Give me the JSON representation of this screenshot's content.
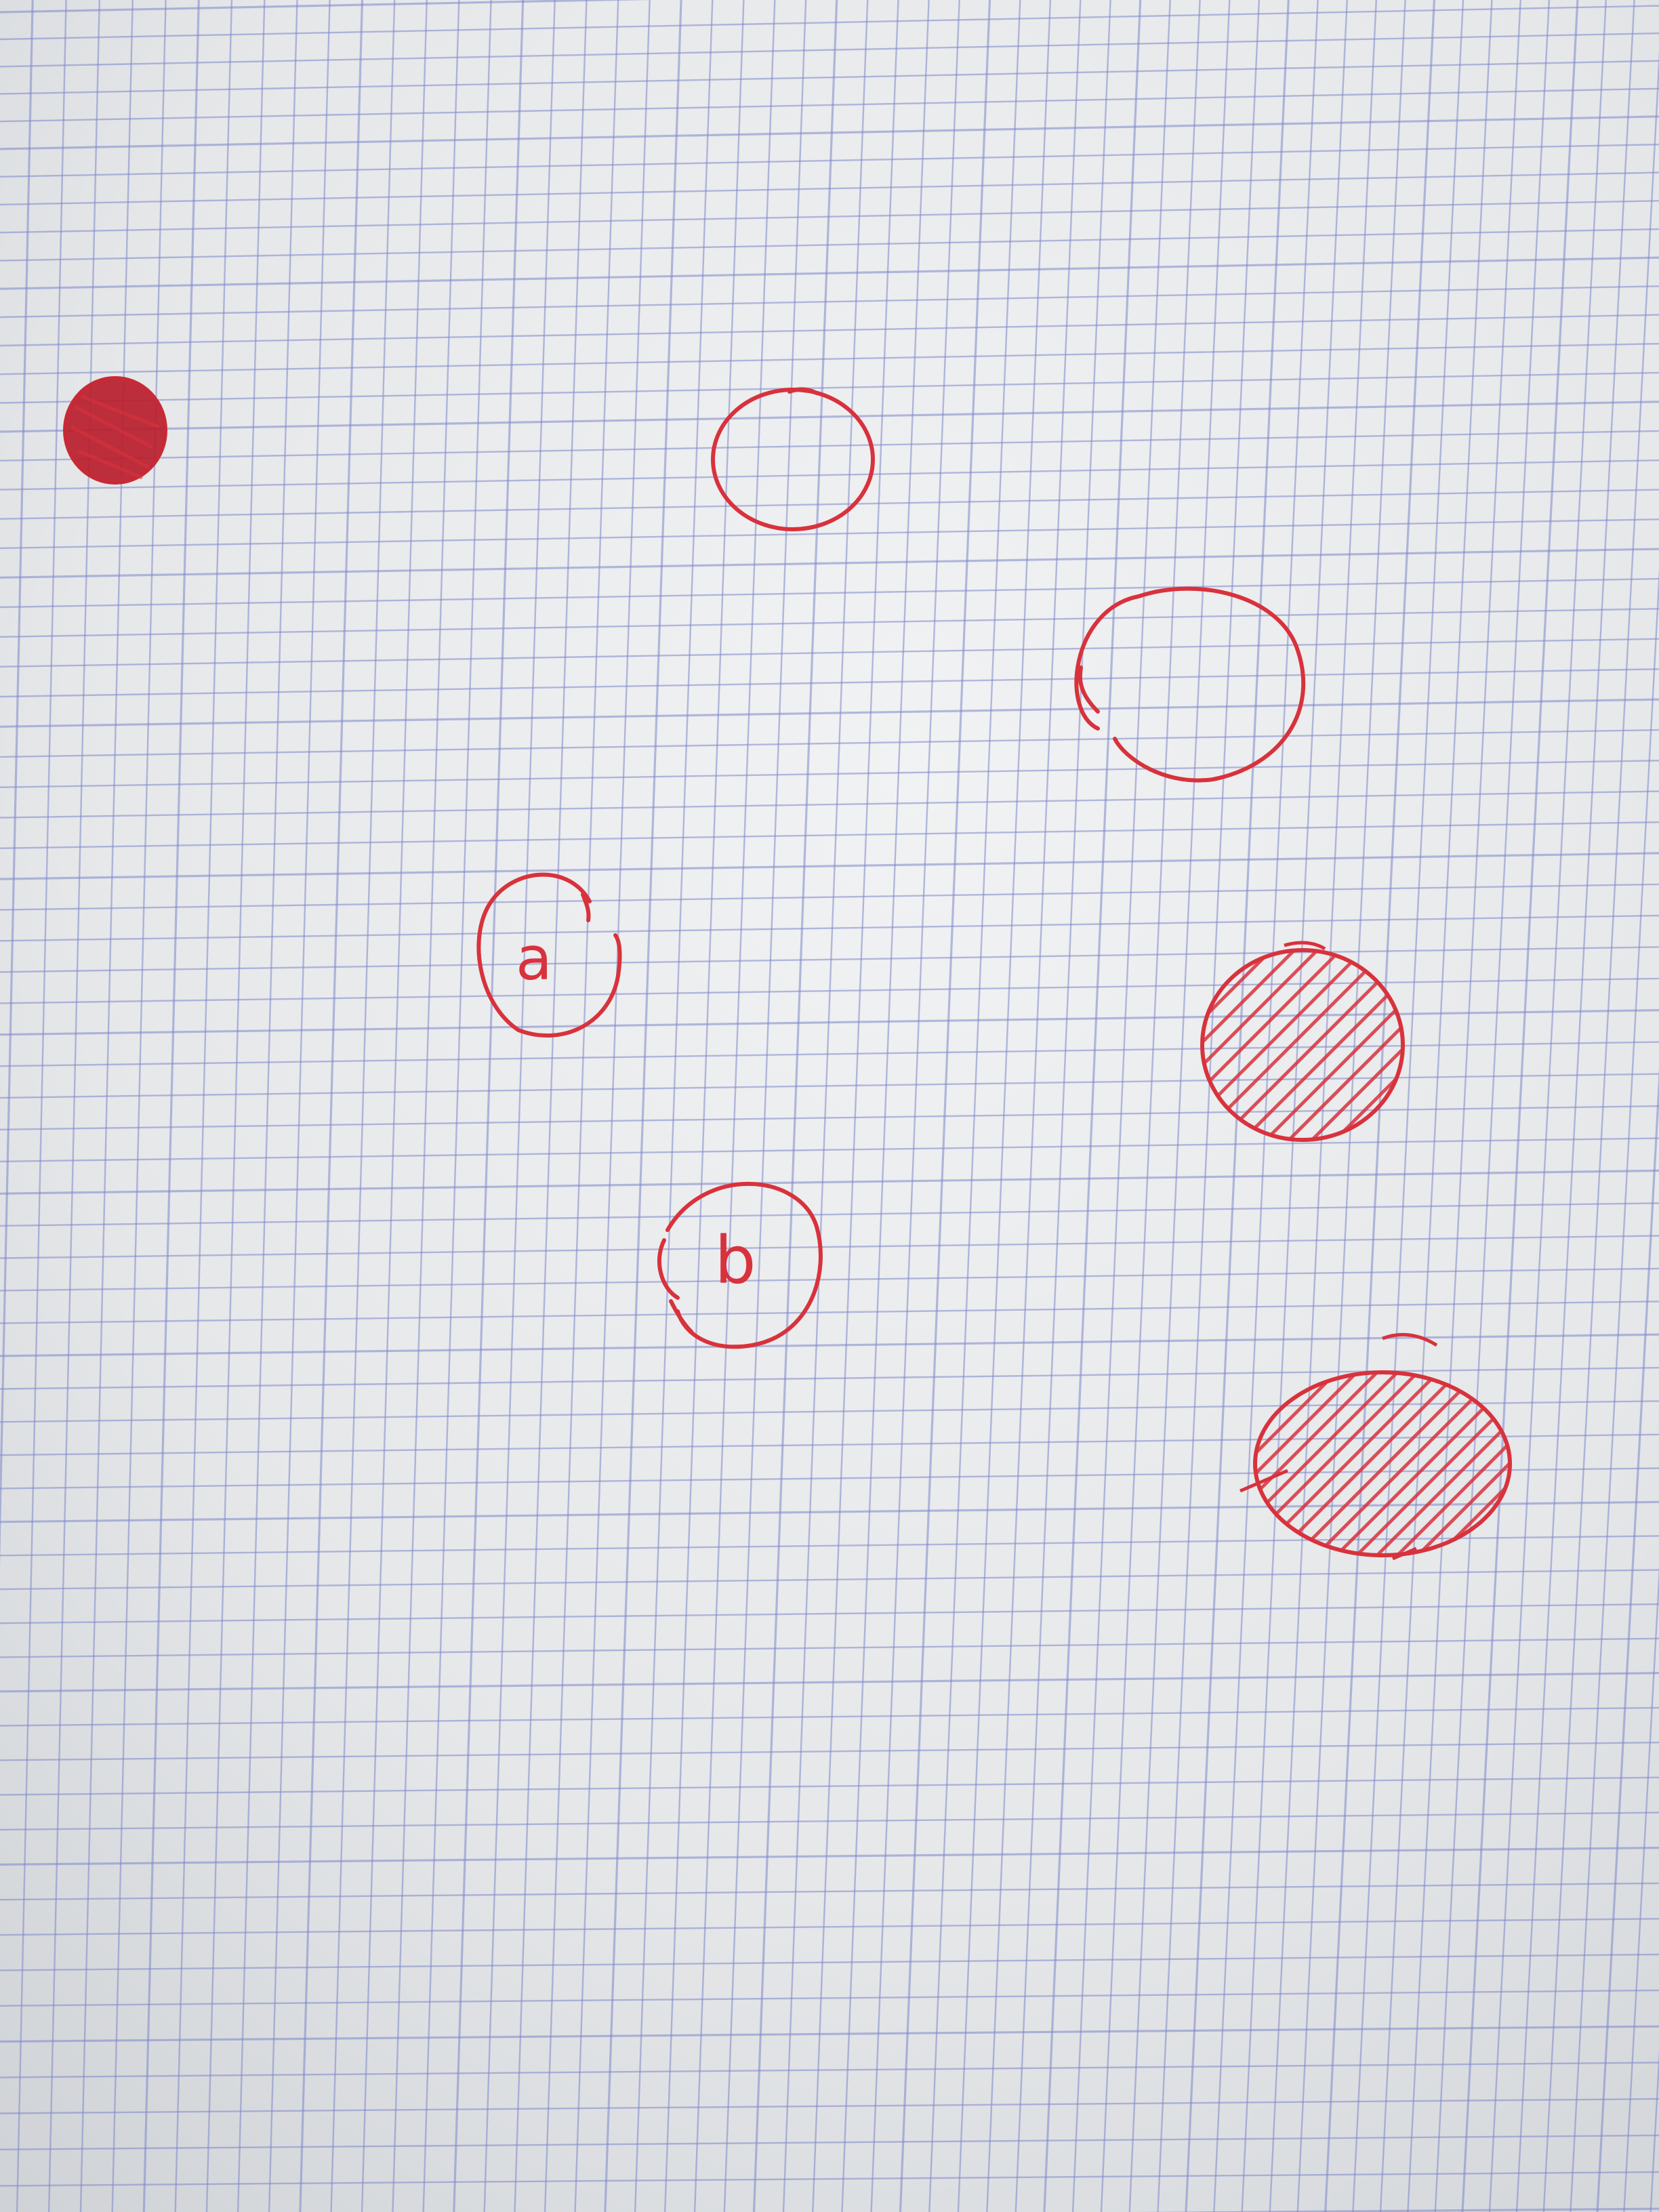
{
  "paper": {
    "background": "#e6e8ea",
    "grid_color": "#7e86c9",
    "ink_color": "#d8323c",
    "dark_ink_color": "#b81e2c"
  },
  "drawings": {
    "labels": {
      "a": "a",
      "b": "b"
    },
    "marks": [
      {
        "name": "filled-dot",
        "style": "solid"
      },
      {
        "name": "empty-circle-top",
        "style": "outline"
      },
      {
        "name": "empty-circle-right",
        "style": "outline"
      },
      {
        "name": "circle-a",
        "style": "labeled"
      },
      {
        "name": "circle-b",
        "style": "labeled"
      },
      {
        "name": "hatched-circle-middle",
        "style": "hatched"
      },
      {
        "name": "hatched-circle-bottom",
        "style": "hatched"
      }
    ]
  }
}
